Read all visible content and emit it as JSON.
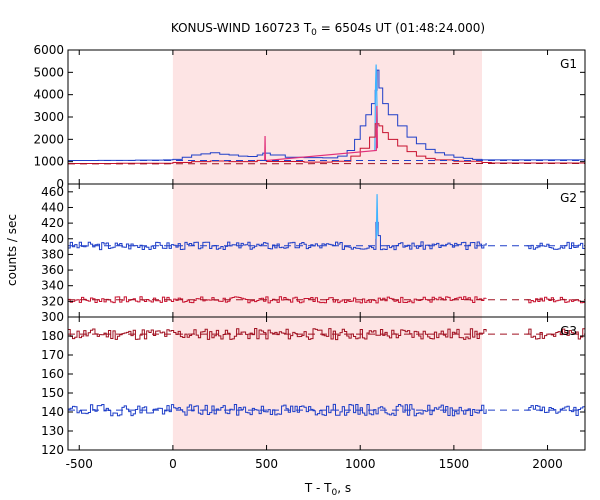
{
  "chart_data": {
    "type": "line",
    "title_main": "KONUS-WIND 160723 T",
    "title_sub": "0",
    "title_rest": " = 6504s UT (01:48:24.000)",
    "xlabel_main": "T - T",
    "xlabel_sub": "0",
    "xlabel_rest": ", s",
    "ylabel": "counts / sec",
    "xlim": [
      -560,
      2200
    ],
    "x_ticks": [
      -500,
      0,
      500,
      1000,
      1500,
      2000
    ],
    "shaded_interval": [
      0,
      1650
    ],
    "colors": {
      "shade": "#fde4e4",
      "blue": "#1f3fc8",
      "light_blue": "#3fb3ff",
      "red": "#c8102e",
      "dark_red": "#a01020",
      "magenta": "#e0307a",
      "dash_blue": "#1f3fc8",
      "dash_red": "#a01020"
    },
    "panels": [
      {
        "label": "G1",
        "ylim": [
          0,
          6000
        ],
        "y_ticks": [
          0,
          1000,
          2000,
          3000,
          4000,
          5000,
          6000
        ],
        "series": [
          {
            "color": "blue",
            "kind": "step",
            "points": [
              [
                -560,
                1050
              ],
              [
                -400,
                1060
              ],
              [
                -200,
                1070
              ],
              [
                -50,
                1080
              ],
              [
                0,
                1100
              ],
              [
                50,
                1200
              ],
              [
                100,
                1300
              ],
              [
                150,
                1350
              ],
              [
                200,
                1400
              ],
              [
                250,
                1330
              ],
              [
                300,
                1300
              ],
              [
                350,
                1250
              ],
              [
                400,
                1230
              ],
              [
                450,
                1300
              ],
              [
                480,
                1380
              ],
              [
                520,
                1300
              ],
              [
                600,
                1200
              ],
              [
                700,
                1180
              ],
              [
                800,
                1170
              ],
              [
                880,
                1250
              ],
              [
                930,
                1500
              ],
              [
                970,
                2000
              ],
              [
                1000,
                2600
              ],
              [
                1030,
                3100
              ],
              [
                1060,
                3600
              ],
              [
                1080,
                4200
              ],
              [
                1090,
                5100
              ],
              [
                1100,
                4300
              ],
              [
                1120,
                3600
              ],
              [
                1150,
                3100
              ],
              [
                1200,
                2600
              ],
              [
                1250,
                2100
              ],
              [
                1300,
                1800
              ],
              [
                1350,
                1550
              ],
              [
                1400,
                1400
              ],
              [
                1450,
                1300
              ],
              [
                1500,
                1200
              ],
              [
                1550,
                1150
              ],
              [
                1600,
                1100
              ],
              [
                1650,
                1080
              ],
              [
                2200,
                1060
              ]
            ]
          },
          {
            "color": "light_blue",
            "kind": "line",
            "points": [
              [
                1078,
                1500
              ],
              [
                1082,
                4500
              ],
              [
                1085,
                5350
              ],
              [
                1088,
                4200
              ],
              [
                1092,
                2500
              ]
            ]
          },
          {
            "color": "red",
            "kind": "step",
            "points": [
              [
                -560,
                920
              ],
              [
                -300,
                930
              ],
              [
                -100,
                930
              ],
              [
                0,
                960
              ],
              [
                100,
                1000
              ],
              [
                200,
                1030
              ],
              [
                300,
                1000
              ],
              [
                400,
                1000
              ],
              [
                450,
                1060
              ],
              [
                500,
                1010
              ],
              [
                700,
                980
              ],
              [
                850,
                1020
              ],
              [
                950,
                1250
              ],
              [
                1000,
                1600
              ],
              [
                1050,
                2100
              ],
              [
                1080,
                2700
              ],
              [
                1100,
                2600
              ],
              [
                1120,
                2300
              ],
              [
                1150,
                2000
              ],
              [
                1200,
                1700
              ],
              [
                1250,
                1450
              ],
              [
                1300,
                1250
              ],
              [
                1350,
                1150
              ],
              [
                1400,
                1080
              ],
              [
                1500,
                1020
              ],
              [
                1650,
                960
              ],
              [
                1700,
                940
              ],
              [
                2200,
                930
              ]
            ]
          },
          {
            "color": "magenta",
            "kind": "line",
            "points": [
              [
                490,
                1050
              ],
              [
                492,
                2150
              ],
              [
                494,
                1050
              ],
              [
                1086,
                1500
              ],
              [
                1089,
                3500
              ],
              [
                1092,
                1600
              ]
            ]
          },
          {
            "color": "dash_blue",
            "kind": "dash",
            "points": [
              [
                -560,
                1050
              ],
              [
                2200,
                1050
              ]
            ]
          },
          {
            "color": "dash_red",
            "kind": "dash",
            "points": [
              [
                -560,
                900
              ],
              [
                2200,
                920
              ]
            ]
          }
        ]
      },
      {
        "label": "G2",
        "ylim": [
          300,
          470
        ],
        "y_ticks": [
          300,
          320,
          340,
          360,
          380,
          400,
          420,
          440,
          460
        ],
        "series": [
          {
            "color": "blue",
            "kind": "noisy",
            "base": 391,
            "amp": 5,
            "seed": 3,
            "spikes": [
              [
                1088,
                416
              ],
              [
                1092,
                421
              ],
              [
                1096,
                404
              ]
            ]
          },
          {
            "color": "light_blue",
            "kind": "line",
            "points": [
              [
                1086,
                400
              ],
              [
                1090,
                457
              ],
              [
                1094,
                405
              ]
            ]
          },
          {
            "color": "red",
            "kind": "noisy",
            "base": 322,
            "amp": 4,
            "seed": 7,
            "spikes": []
          },
          {
            "color": "dash_blue",
            "kind": "dash",
            "points": [
              [
                -560,
                391
              ],
              [
                2200,
                391
              ]
            ]
          },
          {
            "color": "dash_red",
            "kind": "dash",
            "points": [
              [
                -560,
                322
              ],
              [
                2200,
                322
              ]
            ]
          }
        ]
      },
      {
        "label": "G3",
        "ylim": [
          120,
          190
        ],
        "y_ticks": [
          120,
          130,
          140,
          150,
          160,
          170,
          180
        ],
        "series": [
          {
            "color": "dark_red",
            "kind": "noisy",
            "base": 181,
            "amp": 3,
            "seed": 11,
            "spikes": []
          },
          {
            "color": "blue",
            "kind": "noisy",
            "base": 141,
            "amp": 3,
            "seed": 19,
            "spikes": []
          },
          {
            "color": "dash_red",
            "kind": "dash",
            "points": [
              [
                -560,
                181
              ],
              [
                2200,
                181
              ]
            ]
          },
          {
            "color": "dash_blue",
            "kind": "dash",
            "points": [
              [
                -560,
                141
              ],
              [
                2200,
                141
              ]
            ]
          }
        ]
      }
    ]
  }
}
